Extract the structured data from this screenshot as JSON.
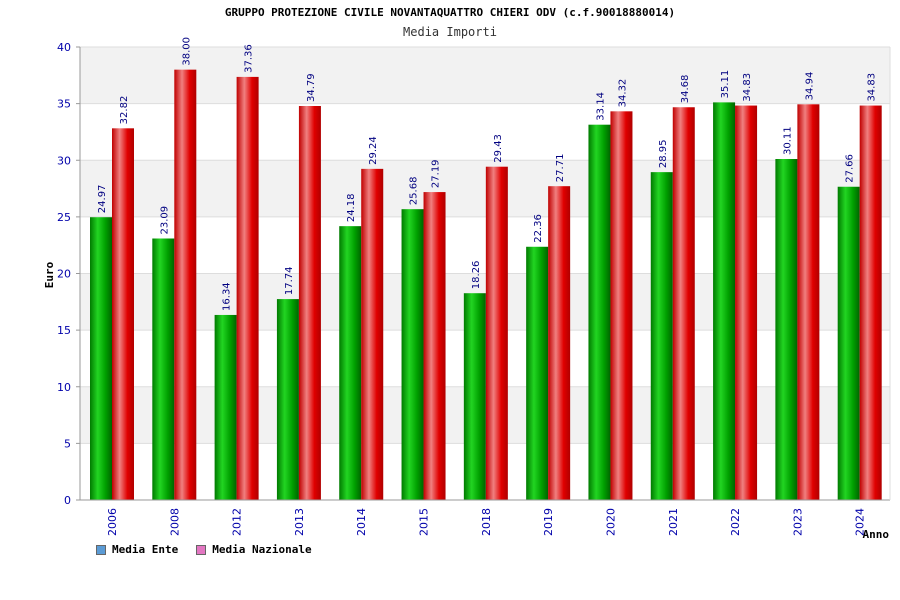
{
  "chart_data": {
    "type": "bar",
    "title": "GRUPPO PROTEZIONE CIVILE NOVANTAQUATTRO CHIERI ODV (c.f.90018880014)",
    "subtitle": "Media Importi",
    "xlabel": "Anno",
    "ylabel": "Euro",
    "ylim": [
      0,
      40
    ],
    "yticks": [
      0,
      5,
      10,
      15,
      20,
      25,
      30,
      35,
      40
    ],
    "grid": true,
    "legend_position": "bottom-left",
    "categories": [
      "2006",
      "2008",
      "2012",
      "2013",
      "2014",
      "2015",
      "2018",
      "2019",
      "2020",
      "2021",
      "2022",
      "2023",
      "2024"
    ],
    "series": [
      {
        "name": "Media Ente",
        "color": "#00a000",
        "legend_color": "#5b9bd5",
        "values": [
          24.97,
          23.09,
          16.34,
          17.74,
          24.18,
          25.68,
          18.26,
          22.36,
          33.14,
          28.95,
          35.11,
          30.11,
          27.66
        ]
      },
      {
        "name": "Media Nazionale",
        "color": "#e00000",
        "legend_color": "#e377c2",
        "values": [
          32.82,
          38.0,
          37.36,
          34.79,
          29.24,
          27.19,
          29.43,
          27.71,
          34.32,
          34.68,
          34.83,
          34.94,
          34.83
        ]
      }
    ],
    "value_labels": [
      [
        "24.97",
        "23.09",
        "16.34",
        "17.74",
        "24.18",
        "25.68",
        "18.26",
        "22.36",
        "33.14",
        "28.95",
        "35.11",
        "30.11",
        "27.66"
      ],
      [
        "32.82",
        "38.00",
        "37.36",
        "34.79",
        "29.24",
        "27.19",
        "29.43",
        "27.71",
        "34.32",
        "34.68",
        "34.83",
        "34.94",
        "34.83"
      ]
    ]
  }
}
